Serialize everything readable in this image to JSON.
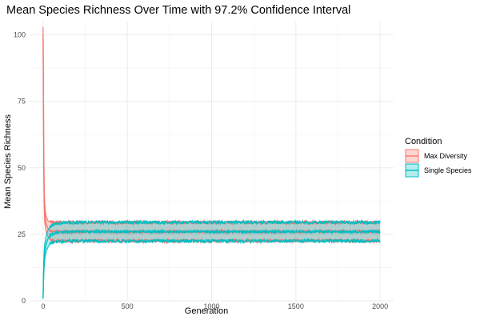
{
  "chart_data": {
    "type": "line",
    "title": "Mean Species Richness Over Time with 97.2% Confidence Interval",
    "xlabel": "Generation",
    "ylabel": "Mean Species Richness",
    "xlim": [
      -80,
      2080
    ],
    "ylim": [
      0,
      105
    ],
    "x_ticks": [
      0,
      500,
      1000,
      1500,
      2000
    ],
    "y_ticks": [
      0,
      25,
      50,
      75,
      100
    ],
    "grid": true,
    "legend": {
      "title": "Condition",
      "position": "right"
    },
    "series": [
      {
        "name": "Max Diversity",
        "color": "#F8766D",
        "fill": "#F8766D",
        "x": [
          0,
          2,
          4,
          6,
          8,
          10,
          15,
          20,
          30,
          40,
          50,
          75,
          100,
          200,
          400,
          600,
          800,
          1000,
          1200,
          1400,
          1600,
          1800,
          2000
        ],
        "mean": [
          100,
          80,
          55,
          42,
          36,
          33,
          30,
          28.5,
          27,
          26.5,
          26,
          26,
          26,
          26,
          26,
          26,
          26,
          26,
          26,
          26,
          26,
          26,
          26
        ],
        "lower": [
          97,
          76,
          50,
          38,
          32,
          29.5,
          27,
          25.5,
          24,
          23.2,
          22.8,
          22.5,
          22.5,
          22.5,
          22.5,
          22.5,
          22.5,
          22.5,
          22.5,
          22.5,
          22.5,
          22.5,
          22.5
        ],
        "upper": [
          103,
          84,
          60,
          46,
          40,
          36.5,
          33,
          31.5,
          30,
          29.8,
          29.5,
          29.5,
          29.5,
          29.5,
          29.5,
          29.5,
          29.5,
          29.5,
          29.5,
          29.5,
          29.5,
          29.5,
          29.5
        ]
      },
      {
        "name": "Single Species",
        "color": "#00BFC4",
        "fill": "#00BFC4",
        "x": [
          0,
          2,
          4,
          6,
          8,
          10,
          15,
          20,
          30,
          40,
          50,
          75,
          100,
          200,
          400,
          600,
          800,
          1000,
          1200,
          1400,
          1600,
          1800,
          2000
        ],
        "mean": [
          1,
          7,
          12,
          15,
          17,
          18.5,
          20.5,
          21.8,
          23.5,
          24.5,
          25,
          25.5,
          25.8,
          26,
          26,
          26,
          26,
          26,
          26,
          26,
          26,
          26,
          26
        ],
        "lower": [
          0.8,
          5,
          9,
          12,
          14,
          15.5,
          17.5,
          18.8,
          20.3,
          21.3,
          21.8,
          22.2,
          22.4,
          22.5,
          22.5,
          22.5,
          22.5,
          22.5,
          22.5,
          22.5,
          22.5,
          22.5,
          22.5
        ],
        "upper": [
          1.4,
          9,
          15,
          18,
          20,
          21.5,
          23.5,
          24.8,
          26.7,
          27.7,
          28.3,
          28.8,
          29.2,
          29.5,
          29.5,
          29.5,
          29.5,
          29.5,
          29.5,
          29.5,
          29.5,
          29.5,
          29.5
        ]
      }
    ]
  }
}
